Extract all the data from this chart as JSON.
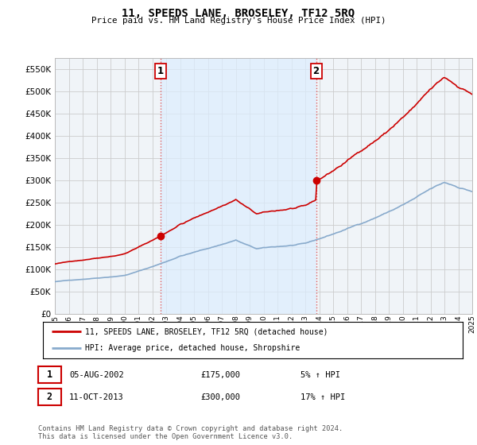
{
  "title": "11, SPEEDS LANE, BROSELEY, TF12 5RQ",
  "subtitle": "Price paid vs. HM Land Registry's House Price Index (HPI)",
  "legend_line1": "11, SPEEDS LANE, BROSELEY, TF12 5RQ (detached house)",
  "legend_line2": "HPI: Average price, detached house, Shropshire",
  "annotation1_label": "1",
  "annotation1_date": "05-AUG-2002",
  "annotation1_price": "£175,000",
  "annotation1_hpi": "5% ↑ HPI",
  "annotation2_label": "2",
  "annotation2_date": "11-OCT-2013",
  "annotation2_price": "£300,000",
  "annotation2_hpi": "17% ↑ HPI",
  "footer": "Contains HM Land Registry data © Crown copyright and database right 2024.\nThis data is licensed under the Open Government Licence v3.0.",
  "red_color": "#cc0000",
  "blue_color": "#88aacc",
  "shade_color": "#ddeeff",
  "vline_color": "#dd4444",
  "grid_color": "#cccccc",
  "bg_color": "#ffffff",
  "plot_bg_color": "#f0f4f8",
  "ylim": [
    0,
    575000
  ],
  "yticks": [
    0,
    50000,
    100000,
    150000,
    200000,
    250000,
    300000,
    350000,
    400000,
    450000,
    500000,
    550000
  ],
  "sale1_year": 2002.58,
  "sale1_price": 175000,
  "sale2_year": 2013.78,
  "sale2_price": 300000
}
